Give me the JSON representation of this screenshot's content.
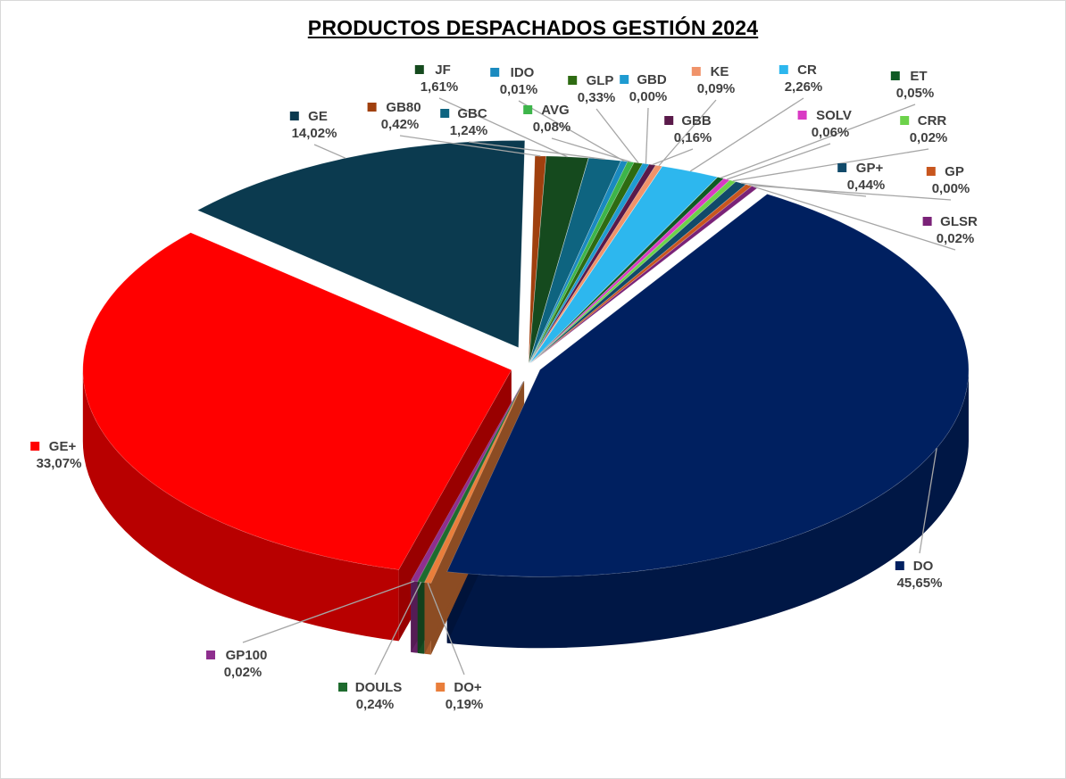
{
  "chart_data": {
    "type": "pie",
    "style": "3d-exploded",
    "title": "PRODUCTOS DESPACHADOS GESTIÓN 2024",
    "slices": [
      {
        "label": "DO",
        "value_label": "45,65%",
        "value": 45.65,
        "color": "#002060"
      },
      {
        "label": "DO+",
        "value_label": "0,19%",
        "value": 0.19,
        "color": "#E97E3B"
      },
      {
        "label": "DOULS",
        "value_label": "0,24%",
        "value": 0.24,
        "color": "#1E6B2E"
      },
      {
        "label": "GP100",
        "value_label": "0,02%",
        "value": 0.02,
        "color": "#8E2F8E"
      },
      {
        "label": "GE+",
        "value_label": "33,07%",
        "value": 33.07,
        "color": "#FF0000"
      },
      {
        "label": "GE",
        "value_label": "14,02%",
        "value": 14.02,
        "color": "#0B3A4F"
      },
      {
        "label": "GB80",
        "value_label": "0,42%",
        "value": 0.42,
        "color": "#A0400E"
      },
      {
        "label": "JF",
        "value_label": "1,61%",
        "value": 1.61,
        "color": "#154A1E"
      },
      {
        "label": "GBC",
        "value_label": "1,24%",
        "value": 1.24,
        "color": "#0E6480"
      },
      {
        "label": "IDO",
        "value_label": "0,01%",
        "value": 0.01,
        "color": "#1A8ABF"
      },
      {
        "label": "AVG",
        "value_label": "0,08%",
        "value": 0.08,
        "color": "#3DB54A"
      },
      {
        "label": "GLP",
        "value_label": "0,33%",
        "value": 0.33,
        "color": "#2E6B12"
      },
      {
        "label": "GBD",
        "value_label": "0,00%",
        "value": 0.0,
        "color": "#1F9BD1"
      },
      {
        "label": "GBB",
        "value_label": "0,16%",
        "value": 0.16,
        "color": "#5A1A4A"
      },
      {
        "label": "KE",
        "value_label": "0,09%",
        "value": 0.09,
        "color": "#F0936A"
      },
      {
        "label": "CR",
        "value_label": "2,26%",
        "value": 2.26,
        "color": "#2DB7EE"
      },
      {
        "label": "ET",
        "value_label": "0,05%",
        "value": 0.05,
        "color": "#0F5A24"
      },
      {
        "label": "SOLV",
        "value_label": "0,06%",
        "value": 0.06,
        "color": "#D93AC4"
      },
      {
        "label": "CRR",
        "value_label": "0,02%",
        "value": 0.02,
        "color": "#6CD24A"
      },
      {
        "label": "GP+",
        "value_label": "0,44%",
        "value": 0.44,
        "color": "#114A6A"
      },
      {
        "label": "GP",
        "value_label": "0,00%",
        "value": 0.0,
        "color": "#C8561E"
      },
      {
        "label": "GLSR",
        "value_label": "0,02%",
        "value": 0.02,
        "color": "#7A2278"
      }
    ]
  }
}
